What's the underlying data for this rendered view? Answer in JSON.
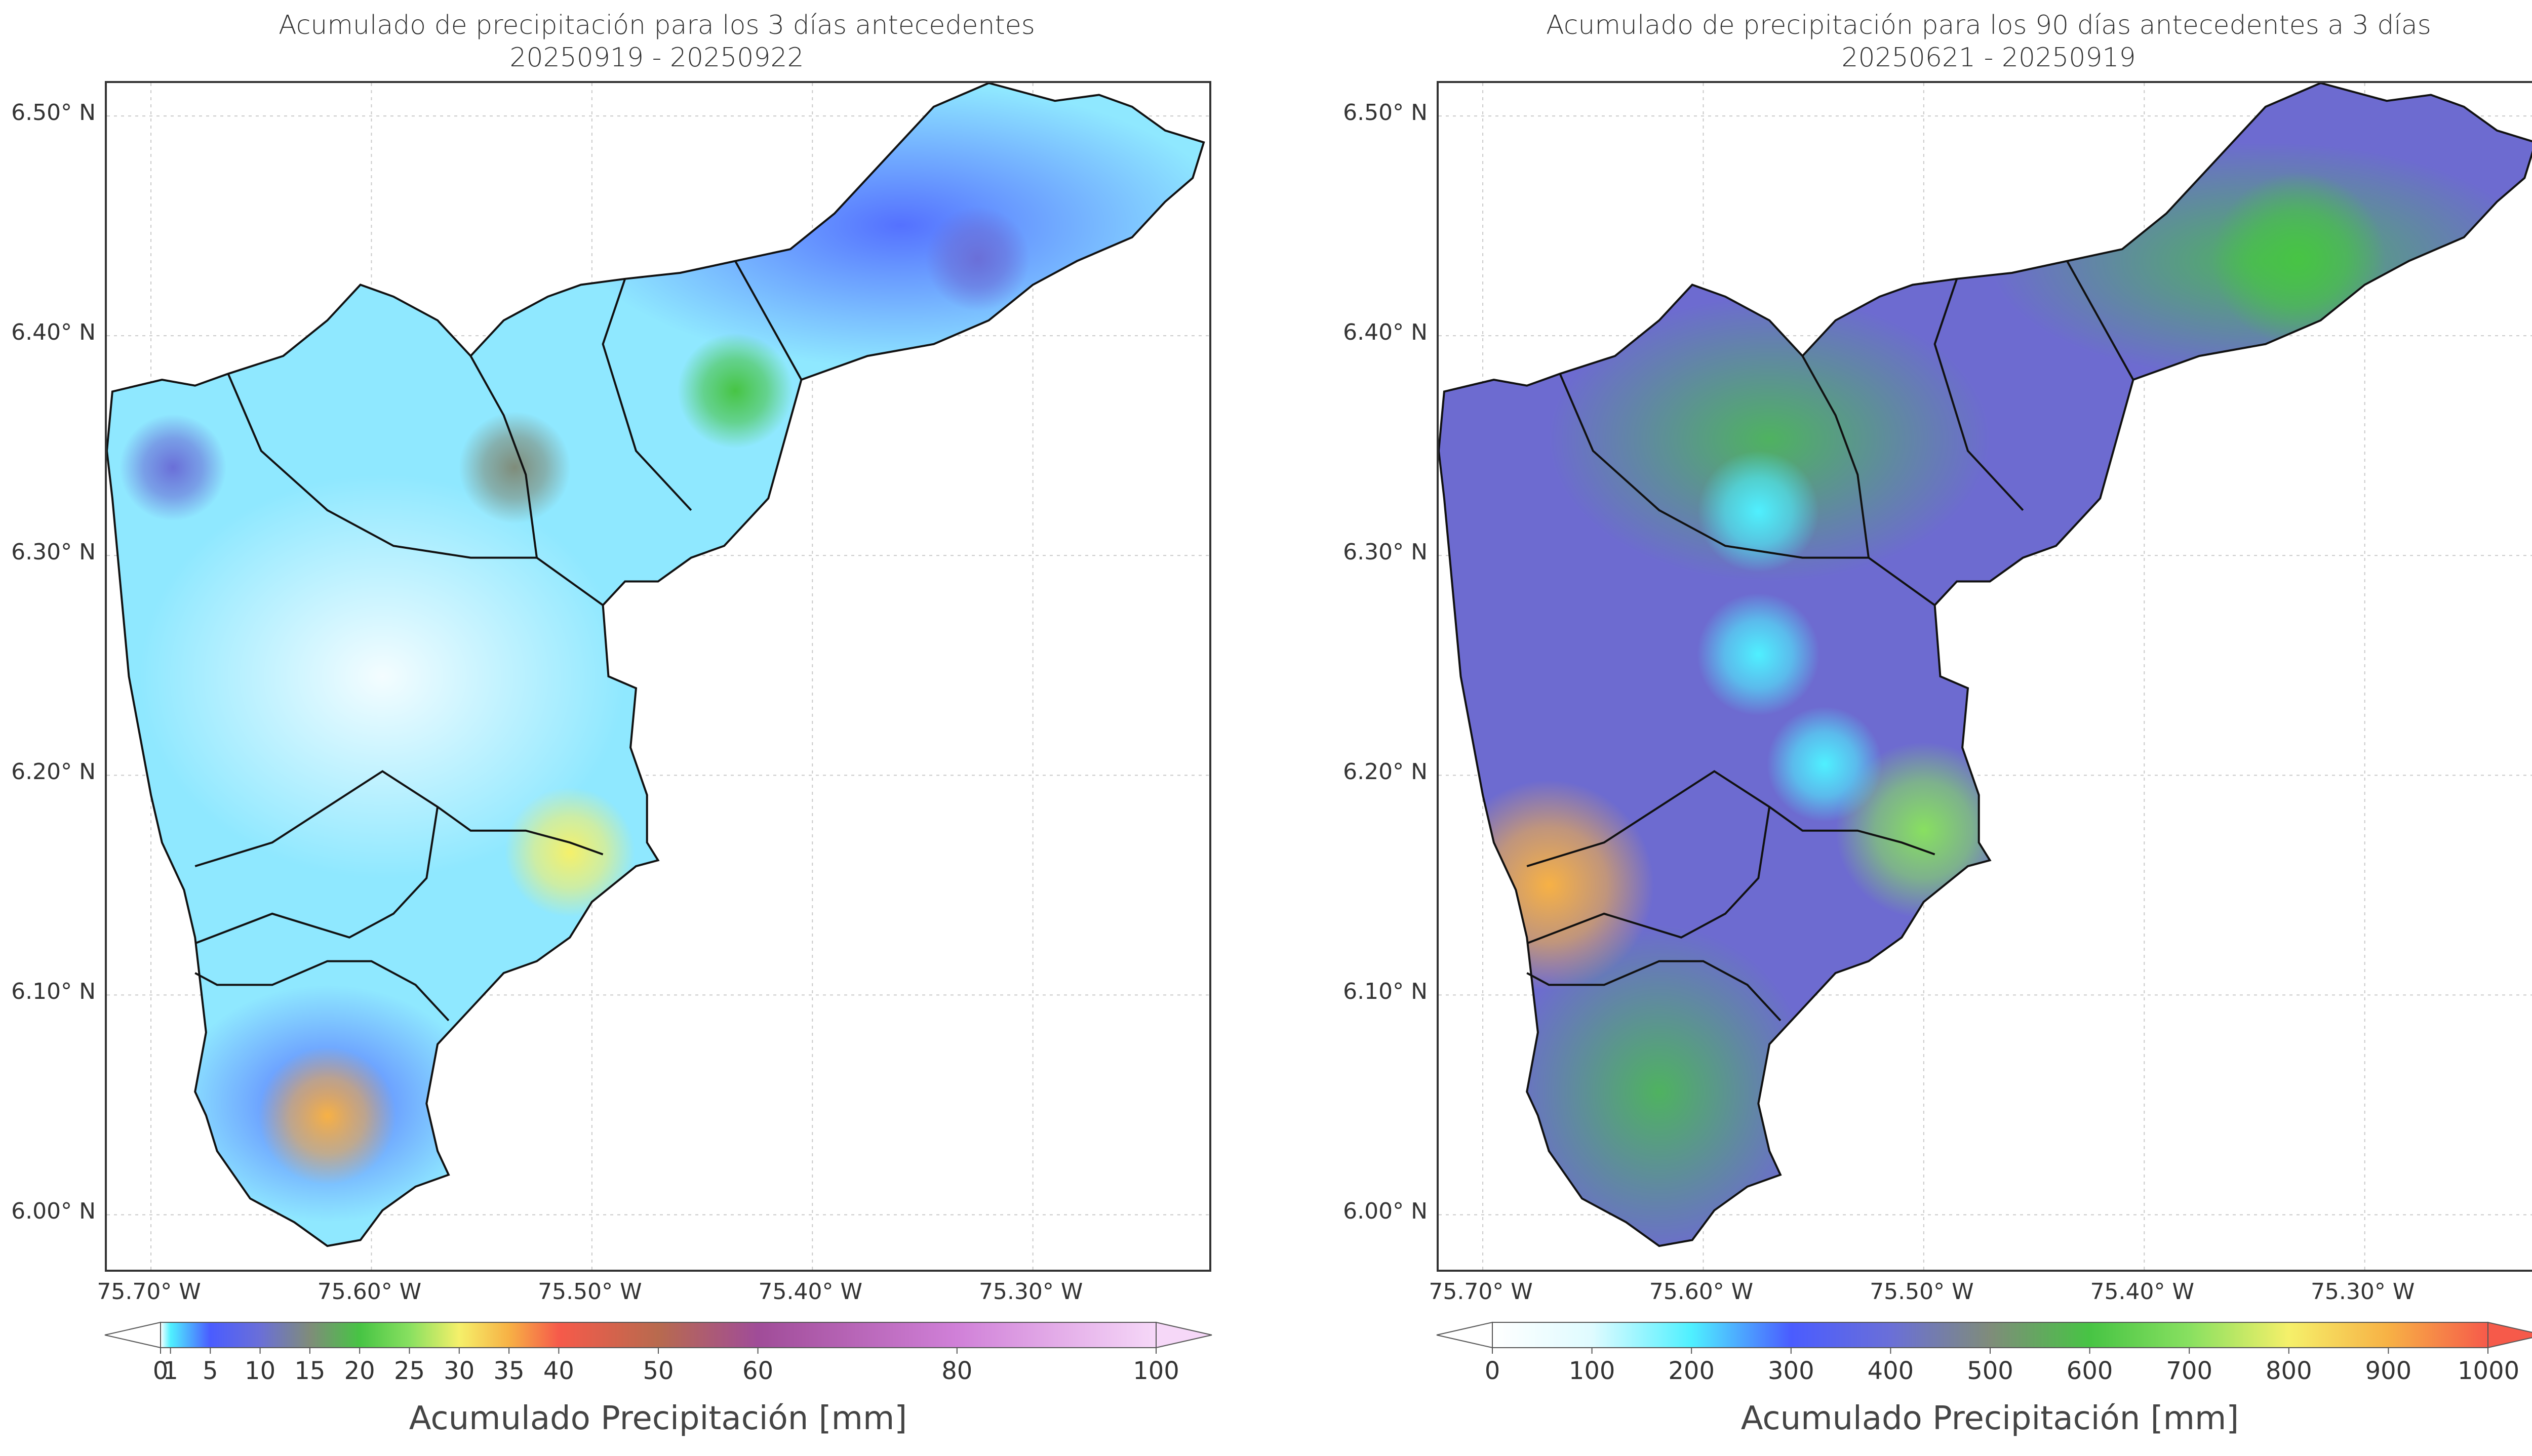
{
  "chart_data": [
    {
      "type": "heatmap",
      "title": "Acumulado de precipitación para los 3 días antecedentes",
      "subtitle": "20250919 - 20250922",
      "x_ticks": [
        "75.70° W",
        "75.60° W",
        "75.50° W",
        "75.40° W",
        "75.30° W"
      ],
      "x_values": [
        -75.7,
        -75.6,
        -75.5,
        -75.4,
        -75.3
      ],
      "y_ticks": [
        "6.50° N",
        "6.40° N",
        "6.30° N",
        "6.20° N",
        "6.10° N",
        "6.00° N"
      ],
      "y_values": [
        6.5,
        6.4,
        6.3,
        6.2,
        6.1,
        6.0
      ],
      "xlim": [
        -75.72,
        -75.22
      ],
      "ylim": [
        5.975,
        6.515
      ],
      "grid": true,
      "colorbar": {
        "label": "Acumulado Precipitación [mm]",
        "ticks": [
          "0",
          "1",
          "5",
          "10",
          "15",
          "20",
          "25",
          "30",
          "35",
          "40",
          "50",
          "60",
          "80",
          "100"
        ],
        "tick_values": [
          0,
          1,
          5,
          10,
          15,
          20,
          25,
          30,
          35,
          40,
          50,
          60,
          80,
          100
        ],
        "colors": [
          "#ffffff",
          "#4ff0ff",
          "#4a5cff",
          "#6a6fd8",
          "#7f8c7a",
          "#47c444",
          "#88e060",
          "#f5f06a",
          "#f7b145",
          "#f65a4a",
          "#b86a4e",
          "#a04c98",
          "#d080d8",
          "#f6d8f8"
        ]
      },
      "hotspots_mm": [
        {
          "lon": -75.62,
          "lat": 6.045,
          "value": 38
        },
        {
          "lon": -75.51,
          "lat": 6.165,
          "value": 32
        },
        {
          "lon": -75.435,
          "lat": 6.375,
          "value": 20
        },
        {
          "lon": -75.535,
          "lat": 6.34,
          "value": 17
        },
        {
          "lon": -75.69,
          "lat": 6.34,
          "value": 13
        },
        {
          "lon": -75.325,
          "lat": 6.435,
          "value": 11
        }
      ]
    },
    {
      "type": "heatmap",
      "title": "Acumulado de precipitación para los 90 días antecedentes a 3 días",
      "subtitle": "20250621 - 20250919",
      "x_ticks": [
        "75.70° W",
        "75.60° W",
        "75.50° W",
        "75.40° W",
        "75.30° W"
      ],
      "x_values": [
        -75.7,
        -75.6,
        -75.5,
        -75.4,
        -75.3
      ],
      "y_ticks": [
        "6.50° N",
        "6.40° N",
        "6.30° N",
        "6.20° N",
        "6.10° N",
        "6.00° N"
      ],
      "y_values": [
        6.5,
        6.4,
        6.3,
        6.2,
        6.1,
        6.0
      ],
      "xlim": [
        -75.72,
        -75.22
      ],
      "ylim": [
        5.975,
        6.515
      ],
      "grid": true,
      "colorbar": {
        "label": "Acumulado Precipitación [mm]",
        "ticks": [
          "0",
          "100",
          "200",
          "300",
          "400",
          "500",
          "600",
          "700",
          "800",
          "900",
          "1000"
        ],
        "tick_values": [
          0,
          100,
          200,
          300,
          400,
          500,
          600,
          700,
          800,
          900,
          1000
        ],
        "colors": [
          "#ffffff",
          "#dffbff",
          "#4ff0ff",
          "#4a5cff",
          "#6a6fd8",
          "#7f8c7a",
          "#47c444",
          "#88e060",
          "#f5f06a",
          "#f7b145",
          "#f65a4a"
        ]
      },
      "hotspots_mm": [
        {
          "lon": -75.33,
          "lat": 6.435,
          "value": 680
        },
        {
          "lon": -75.5,
          "lat": 6.175,
          "value": 700
        },
        {
          "lon": -75.67,
          "lat": 6.15,
          "value": 980
        },
        {
          "lon": -75.545,
          "lat": 6.205,
          "value": 200
        },
        {
          "lon": -75.575,
          "lat": 6.32,
          "value": 250
        },
        {
          "lon": -75.575,
          "lat": 6.255,
          "value": 260
        }
      ]
    }
  ]
}
